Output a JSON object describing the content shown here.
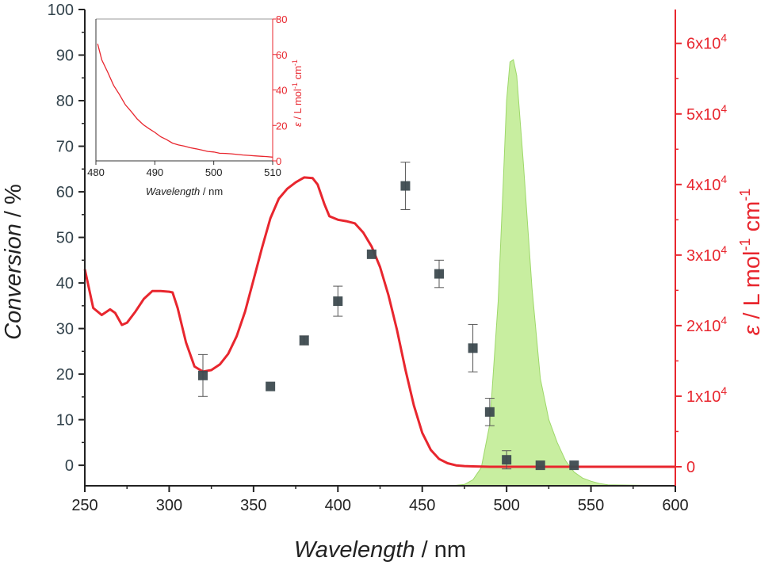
{
  "chart_data": [
    {
      "type": "scatter",
      "xlabel_italic": "Wavelength",
      "xlabel_unit": " / nm",
      "ylabel_italic": "Conversion",
      "ylabel_unit": " / %",
      "y2label_symbol": "ε",
      "y2label_unit": " / L mol",
      "y2label_sup1": "-1",
      "y2label_mid": " cm",
      "y2label_sup2": "-1",
      "xlim": [
        250,
        600
      ],
      "ylim": [
        -4.5,
        100
      ],
      "y2lim": [
        -2700,
        64800
      ],
      "x_ticks": [
        "250",
        "300",
        "350",
        "400",
        "450",
        "500",
        "550",
        "600"
      ],
      "y_ticks": [
        "0",
        "10",
        "20",
        "30",
        "40",
        "50",
        "60",
        "70",
        "80",
        "90",
        "100"
      ],
      "y2_ticks": [
        {
          "base": "0",
          "exp": ""
        },
        {
          "base": "1x10",
          "exp": "4"
        },
        {
          "base": "2x10",
          "exp": "4"
        },
        {
          "base": "3x10",
          "exp": "4"
        },
        {
          "base": "4x10",
          "exp": "4"
        },
        {
          "base": "5x10",
          "exp": "4"
        },
        {
          "base": "6x10",
          "exp": "4"
        }
      ],
      "colors": {
        "conversion": "#3d4a4f",
        "absorption": "#e8262e",
        "emission": "#c8eea0",
        "emission_edge": "#9ed86a",
        "axis": "#222222"
      },
      "series": [
        {
          "type": "scatter",
          "axis": "left",
          "x": [
            320,
            360,
            380,
            400,
            420,
            440,
            460,
            480,
            490,
            500,
            520,
            540
          ],
          "y": [
            19.7,
            17.3,
            27.4,
            36,
            46.3,
            61.3,
            42,
            25.7,
            11.7,
            1.2,
            0,
            0
          ],
          "error": [
            4.6,
            0,
            1,
            3.3,
            0,
            5.2,
            3,
            5.2,
            3,
            2,
            0,
            0
          ]
        },
        {
          "type": "line",
          "axis": "right",
          "x": [
            250,
            255,
            260,
            265,
            268,
            272,
            275,
            280,
            285,
            290,
            295,
            300,
            302,
            305,
            310,
            315,
            320,
            325,
            330,
            335,
            340,
            345,
            350,
            355,
            360,
            365,
            370,
            375,
            380,
            385,
            388,
            392,
            395,
            400,
            405,
            410,
            415,
            420,
            425,
            430,
            435,
            440,
            445,
            450,
            455,
            460,
            465,
            470,
            475,
            480,
            490,
            500,
            520,
            550,
            580,
            600
          ],
          "y": [
            28000,
            22500,
            21500,
            22300,
            21800,
            20100,
            20400,
            22000,
            23800,
            24900,
            24900,
            24800,
            24700,
            22500,
            17600,
            14200,
            13500,
            13700,
            14500,
            16000,
            18500,
            22000,
            26500,
            31000,
            35200,
            38000,
            39400,
            40300,
            41000,
            40900,
            40000,
            37200,
            35500,
            35000,
            34800,
            34500,
            33200,
            31200,
            28300,
            24300,
            19400,
            13800,
            8700,
            4800,
            2400,
            1100,
            500,
            200,
            100,
            50,
            0,
            0,
            0,
            0,
            0,
            0
          ]
        },
        {
          "type": "area",
          "axis": "left",
          "x": [
            250,
            460,
            470,
            475,
            480,
            485,
            490,
            495,
            498,
            500,
            502,
            504,
            506,
            510,
            515,
            520,
            525,
            530,
            535,
            540,
            545,
            550,
            555,
            560,
            600
          ],
          "y": [
            -4.5,
            -4.5,
            -4.4,
            -4.2,
            -3.2,
            -0.5,
            9,
            36,
            62,
            80,
            88.5,
            89,
            85.5,
            66,
            39,
            19,
            10,
            5,
            1,
            -1.5,
            -2.8,
            -3.5,
            -4,
            -4.3,
            -4.5
          ]
        }
      ]
    },
    {
      "type": "line",
      "xlabel_italic": "Wavelength",
      "xlabel_unit": " / nm",
      "y2label_symbol": "ε",
      "y2label_unit": " / L mol",
      "y2label_sup1": "-1",
      "y2label_mid": " cm",
      "y2label_sup2": "-1",
      "xlim": [
        480,
        510
      ],
      "ylim": [
        0,
        80
      ],
      "x_ticks": [
        "480",
        "490",
        "500",
        "510"
      ],
      "y_ticks": [
        "0",
        "20",
        "40",
        "60",
        "80"
      ],
      "series": [
        {
          "type": "line",
          "x": [
            480.3,
            481,
            482,
            483,
            484,
            485,
            486,
            487,
            488,
            489,
            490,
            491,
            492,
            493,
            494,
            495,
            496,
            497,
            498,
            499,
            500,
            501,
            502,
            503,
            504,
            505,
            506,
            507,
            508,
            509,
            510
          ],
          "y": [
            66,
            57,
            50,
            42.6,
            37.4,
            31.6,
            27.8,
            23.7,
            20.5,
            18.2,
            16.1,
            13.6,
            12,
            10,
            9,
            8.3,
            7.4,
            6.8,
            6.1,
            5.3,
            5,
            4.3,
            4.2,
            4,
            3.6,
            3.3,
            3.1,
            2.8,
            2.6,
            2.4,
            2.1
          ]
        }
      ]
    }
  ]
}
